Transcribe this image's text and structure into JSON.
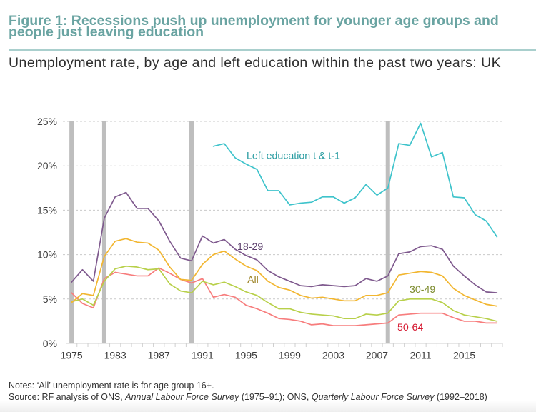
{
  "figure": {
    "title_line1": "Figure 1: Recessions push up unemployment for younger age groups and",
    "title_line2": "people just leaving education",
    "subtitle": "Unemployment rate, by age and left education within the past two years: UK",
    "title_color": "#6aa4a2"
  },
  "chart_data": {
    "type": "line",
    "title": "Figure 1: Recessions push up unemployment for younger age groups and people just leaving education",
    "subtitle": "Unemployment rate, by age and left education within the past two years: UK",
    "xlabel": "",
    "ylabel": "",
    "ylim": [
      0,
      25
    ],
    "y_ticks": [
      0,
      5,
      10,
      15,
      20,
      25
    ],
    "y_tick_labels": [
      "0%",
      "5%",
      "10%",
      "15%",
      "20%",
      "25%"
    ],
    "grid": true,
    "legend": "inline labels next to lines",
    "categories": [
      "1975",
      "1977",
      "1979",
      "1981",
      "1983",
      "1984",
      "1985",
      "1986",
      "1987",
      "1988",
      "1989",
      "1990",
      "1991",
      "1992",
      "1993",
      "1994",
      "1995",
      "1996",
      "1997",
      "1998",
      "1999",
      "2000",
      "2001",
      "2002",
      "2003",
      "2004",
      "2005",
      "2006",
      "2007",
      "2008",
      "2009",
      "2010",
      "2011",
      "2012",
      "2013",
      "2014",
      "2015",
      "2016",
      "2017",
      "2018"
    ],
    "x_tick_labels": [
      "1975",
      "1983",
      "1987",
      "1991",
      "1995",
      "1999",
      "2003",
      "2007",
      "2011",
      "2015"
    ],
    "recession_bars": [
      "1975",
      "1981",
      "1990",
      "2008"
    ],
    "recession_bar_color": "#bebebe",
    "series": [
      {
        "name": "Left education t & t-1",
        "label": "Left education t & t-1",
        "color": "#3ec3cb",
        "label_color": "#2a9da2",
        "values": [
          null,
          null,
          null,
          null,
          null,
          null,
          null,
          null,
          null,
          null,
          null,
          null,
          null,
          22.2,
          22.5,
          20.9,
          20.2,
          19.6,
          17.2,
          17.2,
          15.6,
          15.8,
          15.9,
          16.5,
          16.5,
          15.8,
          16.4,
          17.9,
          16.7,
          17.5,
          22.5,
          22.3,
          24.8,
          21.0,
          21.5,
          16.5,
          16.4,
          14.5,
          13.8,
          12.0
        ]
      },
      {
        "name": "18-29",
        "label": "18-29",
        "color": "#7f5a8e",
        "label_color": "#5a3d6b",
        "values": [
          6.9,
          8.3,
          7.0,
          14.1,
          16.5,
          17.0,
          15.2,
          15.2,
          13.8,
          11.5,
          9.6,
          9.3,
          12.1,
          11.3,
          11.7,
          10.6,
          9.9,
          9.4,
          8.2,
          7.5,
          7.0,
          6.5,
          6.4,
          6.6,
          6.5,
          6.4,
          6.5,
          7.3,
          7.0,
          7.6,
          10.1,
          10.3,
          10.9,
          11.0,
          10.6,
          8.7,
          7.6,
          6.6,
          5.8,
          5.7
        ]
      },
      {
        "name": "All",
        "label": "All",
        "color": "#f2b630",
        "label_color": "#9c8223",
        "values": [
          4.6,
          5.6,
          5.4,
          9.8,
          11.5,
          11.8,
          11.4,
          11.3,
          10.5,
          8.6,
          7.2,
          7.1,
          8.9,
          10.0,
          10.4,
          9.5,
          8.7,
          8.2,
          7.0,
          6.3,
          6.0,
          5.4,
          5.1,
          5.2,
          5.0,
          4.8,
          4.8,
          5.4,
          5.4,
          5.7,
          7.7,
          7.9,
          8.1,
          8.0,
          7.6,
          6.2,
          5.4,
          4.9,
          4.4,
          4.2
        ]
      },
      {
        "name": "30-49",
        "label": "30-49",
        "color": "#b8d04a",
        "label_color": "#7b8a2b",
        "values": [
          4.7,
          5.0,
          4.3,
          7.0,
          8.4,
          8.7,
          8.6,
          8.3,
          8.4,
          6.7,
          5.9,
          5.7,
          7.0,
          6.6,
          6.9,
          6.4,
          5.8,
          5.4,
          4.6,
          3.9,
          3.9,
          3.5,
          3.3,
          3.2,
          3.1,
          2.8,
          2.8,
          3.3,
          3.2,
          3.4,
          4.8,
          5.0,
          5.0,
          5.0,
          4.6,
          3.7,
          3.2,
          3.0,
          2.8,
          2.5
        ]
      },
      {
        "name": "50-64",
        "label": "50-64",
        "color": "#f77d7d",
        "label_color": "#d5172f",
        "values": [
          5.7,
          4.5,
          4.0,
          7.3,
          8.0,
          7.8,
          7.6,
          7.6,
          8.5,
          7.9,
          7.2,
          6.8,
          7.3,
          5.2,
          5.5,
          5.2,
          4.3,
          3.9,
          3.4,
          2.8,
          2.7,
          2.5,
          2.1,
          2.2,
          2.0,
          2.0,
          2.0,
          2.1,
          2.2,
          2.3,
          3.2,
          3.3,
          3.4,
          3.4,
          3.4,
          2.9,
          2.5,
          2.5,
          2.3,
          2.3
        ]
      }
    ]
  },
  "notes": {
    "notes_text": "Notes: ‘All’ unemployment rate is for age group 16+.",
    "source": {
      "prefix": "Source: RF analysis of ONS, ",
      "annual_title": "Annual Labour Force Survey",
      "annual_years": " (1975–91); ONS, ",
      "quarterly_title": "Quarterly Labour Force Survey",
      "quarterly_years": " (1992–2018)"
    }
  }
}
